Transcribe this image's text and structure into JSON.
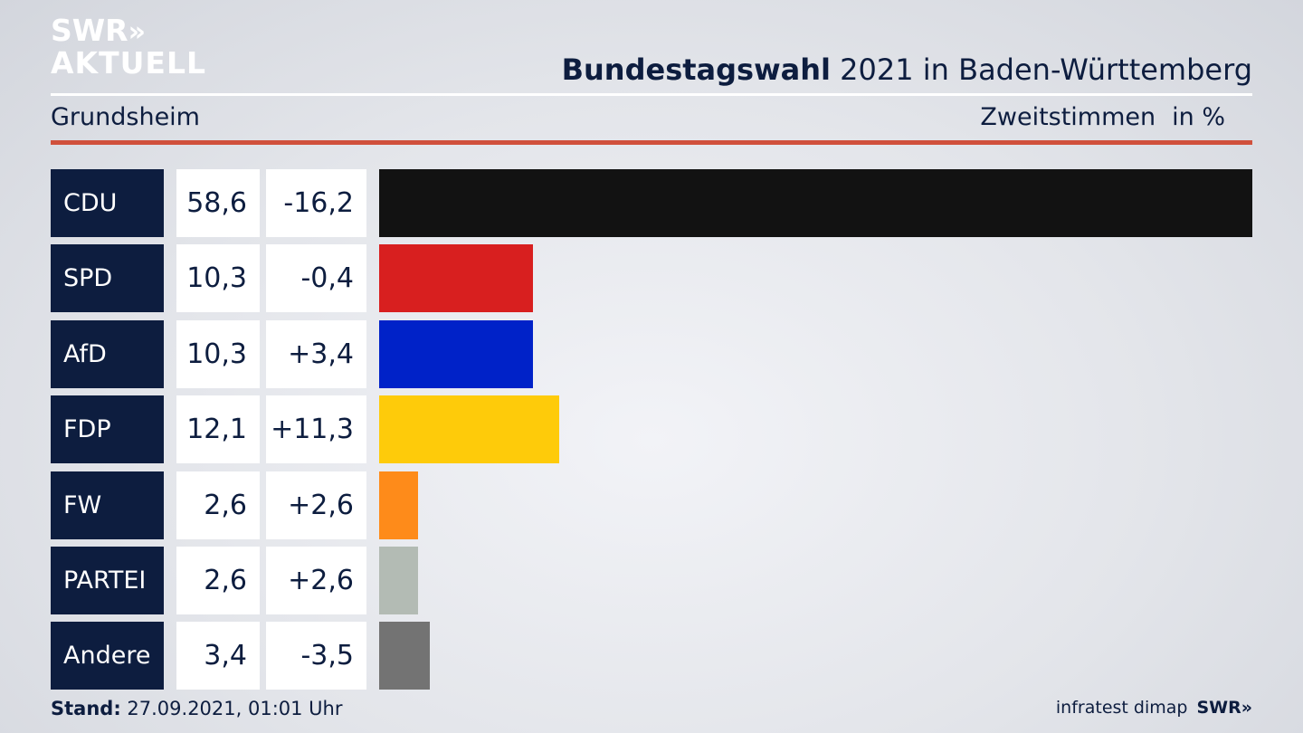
{
  "logo": {
    "line1": "SWR",
    "arrows": "»",
    "line2": "AKTUELL"
  },
  "header": {
    "title_bold": "Bundestagswahl",
    "title_rest": " 2021 in Baden-Württemberg",
    "subtitle": "Grundsheim",
    "measure": "Zweitstimmen",
    "unit": "in %"
  },
  "chart_data": {
    "type": "bar",
    "orientation": "horizontal",
    "categories": [
      "CDU",
      "SPD",
      "AfD",
      "FDP",
      "FW",
      "PARTEI",
      "Andere"
    ],
    "series": [
      {
        "values": [
          58.6,
          10.3,
          10.3,
          12.1,
          2.6,
          2.6,
          3.4
        ]
      }
    ],
    "value_labels": [
      "58,6",
      "10,3",
      "10,3",
      "12,1",
      "2,6",
      "2,6",
      "3,4"
    ],
    "change_labels": [
      "-16,2",
      "-0,4",
      "+3,4",
      "+11,3",
      "+2,6",
      "+2,6",
      "-3,5"
    ],
    "colors": [
      "#121212",
      "#d81f1f",
      "#0022c8",
      "#fecb0a",
      "#fe8b1a",
      "#b3bbb4",
      "#737373"
    ],
    "xlim": [
      0,
      58.6
    ]
  },
  "footer": {
    "stand_label": "Stand:",
    "stand_value": " 27.09.2021, 01:01 Uhr",
    "source": "infratest dimap",
    "source_logo": "SWR»"
  }
}
